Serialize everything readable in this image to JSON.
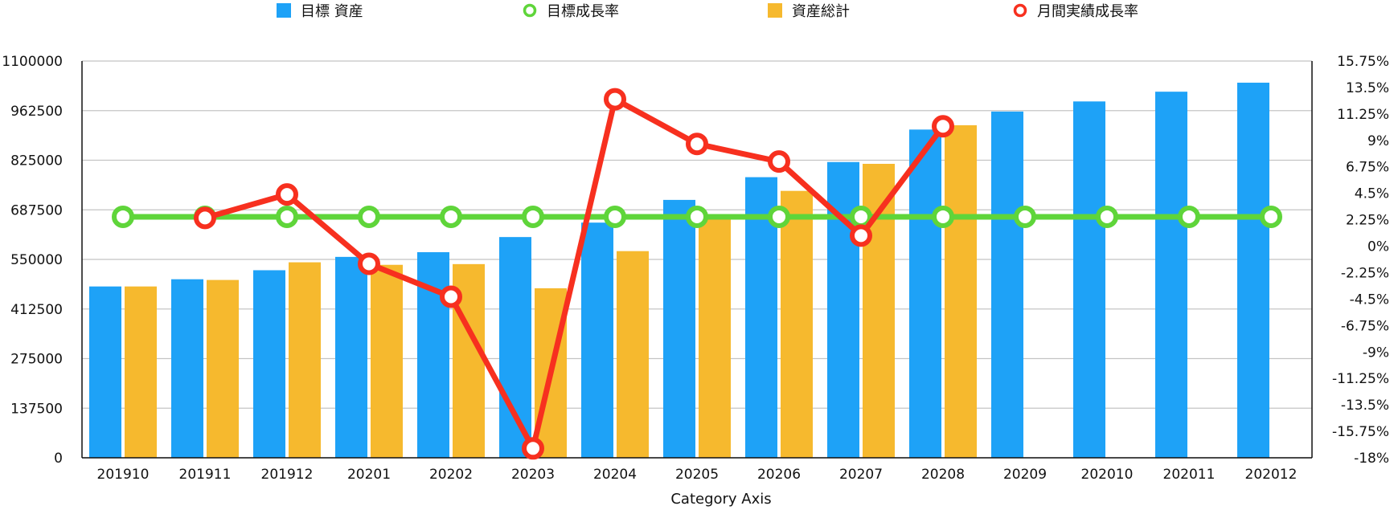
{
  "chart_data": {
    "type": "bar",
    "categories": [
      "201910",
      "201911",
      "201912",
      "20201",
      "20202",
      "20203",
      "20204",
      "20205",
      "20206",
      "20207",
      "20208",
      "20209",
      "202010",
      "202011",
      "202012"
    ],
    "xlabel": "Category Axis",
    "legend_position": "top",
    "grid": true,
    "y_left": {
      "min": 0,
      "max": 1100000,
      "ticks": [
        "0",
        "137500",
        "275000",
        "412500",
        "550000",
        "687500",
        "825000",
        "962500",
        "1100000"
      ]
    },
    "y_right": {
      "min": -18,
      "max": 15.75,
      "ticks": [
        "-18%",
        "-15.75%",
        "-13.5%",
        "-11.25%",
        "-9%",
        "-6.75%",
        "-4.5%",
        "-2.25%",
        "0%",
        "2.25%",
        "4.5%",
        "6.75%",
        "9%",
        "11.25%",
        "13.5%",
        "15.75%"
      ]
    },
    "series": [
      {
        "name": "目標 資産",
        "kind": "bar",
        "axis": "left",
        "color": "#1ea2f7",
        "legend_marker": "square",
        "values": [
          475000,
          495000,
          520000,
          557000,
          570000,
          612000,
          652000,
          715000,
          778000,
          820000,
          910000,
          960000,
          988000,
          1015000,
          1040000
        ]
      },
      {
        "name": "目標成長率",
        "kind": "line",
        "axis": "right",
        "color": "#5fd53a",
        "legend_marker": "circle",
        "values": [
          2.5,
          2.5,
          2.5,
          2.5,
          2.5,
          2.5,
          2.5,
          2.5,
          2.5,
          2.5,
          2.5,
          2.5,
          2.5,
          2.5,
          2.5
        ]
      },
      {
        "name": "資産総計",
        "kind": "bar",
        "axis": "left",
        "color": "#f6b92e",
        "legend_marker": "square",
        "values": [
          475000,
          493000,
          542000,
          535000,
          537000,
          470000,
          573000,
          662000,
          740000,
          815000,
          922000,
          null,
          null,
          null,
          null
        ]
      },
      {
        "name": "月間実績成長率",
        "kind": "line",
        "axis": "right",
        "color": "#f7301f",
        "legend_marker": "circle",
        "values": [
          null,
          2.4,
          4.4,
          -1.5,
          -4.3,
          -17.2,
          12.5,
          8.7,
          7.2,
          0.9,
          10.2,
          null,
          null,
          null,
          null
        ]
      }
    ]
  }
}
